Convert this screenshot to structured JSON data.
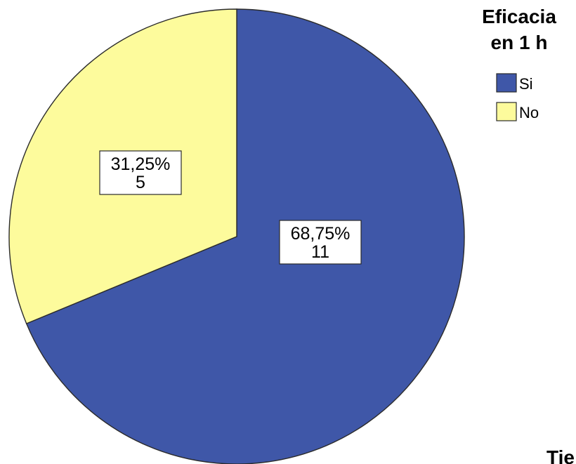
{
  "chart_data": {
    "type": "pie",
    "categories": [
      "Si",
      "No"
    ],
    "values": [
      11,
      5
    ],
    "percent_labels": [
      "68,75%",
      "31,25%"
    ],
    "count_labels": [
      "11",
      "5"
    ],
    "colors": [
      "#3f57a8",
      "#fdfb9c"
    ],
    "legend": {
      "title_lines": [
        "Eficacia",
        "en 1 h"
      ],
      "placement": "top-right",
      "entries": [
        "Si",
        "No"
      ]
    }
  },
  "cutoff_text": "Tie"
}
